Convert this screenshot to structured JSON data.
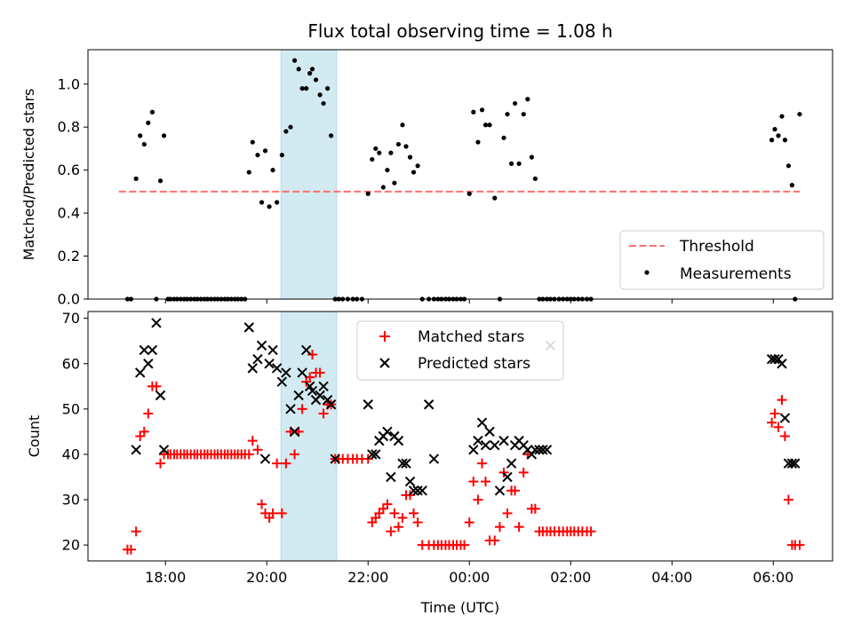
{
  "chart_data": [
    {
      "type": "scatter",
      "title": "Flux total observing time = 1.08 h",
      "ylabel": "Matched/Predicted stars",
      "xlabel": "",
      "ylim": [
        0,
        1.16
      ],
      "yticks": [
        "0.0",
        "0.2",
        "0.4",
        "0.6",
        "0.8",
        "1.0"
      ],
      "legend_position": "lower right",
      "highlight_band": {
        "x_start": 20.28,
        "x_end": 21.38,
        "color": "#add8e6"
      },
      "threshold": {
        "name": "Threshold",
        "y": 0.5,
        "x_start": 17.08,
        "x_end": 30.52,
        "color": "#ff6f6f"
      },
      "series": [
        {
          "name": "Measurements",
          "color": "#000000",
          "x": [
            17.25,
            17.32,
            17.42,
            17.5,
            17.58,
            17.66,
            17.74,
            17.82,
            17.9,
            17.97,
            18.05,
            18.1,
            18.17,
            18.23,
            18.3,
            18.37,
            18.43,
            18.5,
            18.57,
            18.63,
            18.7,
            18.77,
            18.83,
            18.9,
            18.97,
            19.03,
            19.1,
            19.17,
            19.23,
            19.3,
            19.37,
            19.43,
            19.5,
            19.57,
            19.65,
            19.72,
            19.82,
            19.9,
            19.97,
            20.05,
            20.12,
            20.2,
            20.3,
            20.38,
            20.47,
            20.55,
            20.63,
            20.7,
            20.78,
            20.85,
            20.9,
            20.97,
            21.05,
            21.12,
            21.2,
            21.27,
            21.35,
            21.42,
            21.5,
            21.6,
            21.7,
            21.78,
            21.88,
            22.0,
            22.08,
            22.15,
            22.22,
            22.3,
            22.38,
            22.45,
            22.52,
            22.6,
            22.68,
            22.75,
            22.83,
            22.9,
            22.98,
            23.07,
            23.2,
            23.3,
            23.38,
            23.45,
            23.53,
            23.6,
            23.68,
            23.75,
            23.83,
            23.9,
            24.0,
            24.08,
            24.17,
            24.25,
            24.32,
            24.4,
            24.5,
            24.6,
            24.68,
            24.75,
            24.83,
            24.9,
            24.98,
            25.07,
            25.15,
            25.23,
            25.3,
            25.38,
            25.45,
            25.53,
            25.6,
            25.68,
            25.77,
            25.85,
            25.93,
            26.0,
            26.07,
            26.15,
            26.23,
            26.32,
            26.4,
            29.97,
            30.03,
            30.1,
            30.17,
            30.23,
            30.3,
            30.37,
            30.43,
            30.52
          ],
          "y": [
            0,
            0,
            0.56,
            0.76,
            0.72,
            0.82,
            0.87,
            0,
            0.55,
            0.76,
            0,
            0,
            0,
            0,
            0,
            0,
            0,
            0,
            0,
            0,
            0,
            0,
            0,
            0,
            0,
            0,
            0,
            0,
            0,
            0,
            0,
            0,
            0,
            0,
            0.59,
            0.73,
            0.67,
            0.45,
            0.69,
            0.43,
            0.6,
            0.45,
            0.67,
            0.78,
            0.8,
            1.11,
            1.07,
            0.98,
            0.98,
            1.05,
            1.07,
            1.02,
            0.95,
            0.91,
            0.98,
            0.76,
            0,
            0,
            0,
            0,
            0,
            0,
            0,
            0.49,
            0.65,
            0.7,
            0.68,
            0.52,
            0.6,
            0.68,
            0.54,
            0.72,
            0.81,
            0.71,
            0.66,
            0.59,
            0.62,
            0,
            0,
            0,
            0,
            0,
            0,
            0,
            0,
            0,
            0,
            0,
            0.49,
            0.87,
            0.73,
            0.88,
            0.81,
            0.81,
            0.47,
            0,
            0.75,
            0.86,
            0.63,
            0.91,
            0.63,
            0.86,
            0.93,
            0.66,
            0.56,
            0,
            0,
            0,
            0,
            0,
            0,
            0,
            0,
            0,
            0,
            0,
            0,
            0,
            0,
            0.74,
            0.79,
            0.76,
            0.85,
            0.74,
            0.62,
            0.53,
            0,
            0.86
          ]
        }
      ]
    },
    {
      "type": "scatter",
      "title": "",
      "xlabel": "Time (UTC)",
      "ylabel": "Count",
      "xlim": [
        16.47,
        31.17
      ],
      "ylim": [
        16.5,
        71.5
      ],
      "yticks": [
        "20",
        "30",
        "40",
        "50",
        "60",
        "70"
      ],
      "xticks": [
        {
          "value": 18,
          "label": "18:00"
        },
        {
          "value": 20,
          "label": "20:00"
        },
        {
          "value": 22,
          "label": "22:00"
        },
        {
          "value": 24,
          "label": "00:00"
        },
        {
          "value": 26,
          "label": "02:00"
        },
        {
          "value": 28,
          "label": "04:00"
        },
        {
          "value": 30,
          "label": "06:00"
        }
      ],
      "legend_position": "upper center",
      "highlight_band": {
        "x_start": 20.28,
        "x_end": 21.38,
        "color": "#add8e6"
      },
      "series": [
        {
          "name": "Matched stars",
          "marker": "plus",
          "color": "#ff0000",
          "x": [
            17.25,
            17.32,
            17.42,
            17.5,
            17.58,
            17.66,
            17.74,
            17.82,
            17.9,
            17.97,
            18.05,
            18.1,
            18.17,
            18.23,
            18.3,
            18.37,
            18.43,
            18.5,
            18.57,
            18.63,
            18.7,
            18.77,
            18.83,
            18.9,
            18.97,
            19.03,
            19.1,
            19.17,
            19.23,
            19.3,
            19.37,
            19.43,
            19.5,
            19.57,
            19.65,
            19.72,
            19.82,
            19.9,
            19.97,
            20.05,
            20.12,
            20.2,
            20.3,
            20.38,
            20.47,
            20.55,
            20.63,
            20.7,
            20.78,
            20.85,
            20.9,
            20.97,
            21.05,
            21.12,
            21.2,
            21.27,
            21.35,
            21.42,
            21.5,
            21.6,
            21.7,
            21.78,
            21.88,
            22.0,
            22.08,
            22.15,
            22.22,
            22.3,
            22.38,
            22.45,
            22.52,
            22.6,
            22.68,
            22.75,
            22.83,
            22.9,
            22.98,
            23.07,
            23.2,
            23.3,
            23.38,
            23.45,
            23.53,
            23.6,
            23.68,
            23.75,
            23.83,
            23.9,
            24.0,
            24.08,
            24.17,
            24.25,
            24.32,
            24.4,
            24.5,
            24.6,
            24.68,
            24.75,
            24.83,
            24.9,
            24.98,
            25.07,
            25.15,
            25.23,
            25.3,
            25.38,
            25.45,
            25.53,
            25.6,
            25.68,
            25.77,
            25.85,
            25.93,
            26.0,
            26.07,
            26.15,
            26.23,
            26.32,
            26.4,
            29.97,
            30.03,
            30.1,
            30.17,
            30.23,
            30.3,
            30.37,
            30.43,
            30.52
          ],
          "y": [
            19,
            19,
            23,
            44,
            45,
            49,
            55,
            55,
            38,
            40,
            40,
            40,
            40,
            40,
            40,
            40,
            40,
            40,
            40,
            40,
            40,
            40,
            40,
            40,
            40,
            40,
            40,
            40,
            40,
            40,
            40,
            40,
            40,
            40,
            40,
            43,
            41,
            29,
            27,
            26,
            27,
            38,
            27,
            38,
            45,
            40,
            45,
            50,
            56,
            57,
            62,
            58,
            58,
            49,
            51,
            51,
            39,
            39,
            39,
            39,
            39,
            39,
            39,
            39,
            25,
            26,
            27,
            28,
            29,
            23,
            27,
            24,
            26,
            31,
            31,
            27,
            25,
            20,
            20,
            20,
            20,
            20,
            20,
            20,
            20,
            20,
            20,
            20,
            25,
            34,
            30,
            38,
            34,
            21,
            21,
            24,
            36,
            27,
            32,
            32,
            24,
            36,
            40,
            28,
            28,
            23,
            23,
            23,
            23,
            23,
            23,
            23,
            23,
            23,
            23,
            23,
            23,
            23,
            23,
            47,
            49,
            46,
            52,
            44,
            30,
            20,
            20,
            20
          ]
        },
        {
          "name": "Predicted stars",
          "marker": "x",
          "color": "#000000",
          "x": [
            17.42,
            17.5,
            17.58,
            17.66,
            17.74,
            17.82,
            17.9,
            17.97,
            19.65,
            19.72,
            19.82,
            19.9,
            19.97,
            20.05,
            20.12,
            20.2,
            20.3,
            20.38,
            20.47,
            20.55,
            20.63,
            20.7,
            20.78,
            20.85,
            20.9,
            20.97,
            21.05,
            21.12,
            21.2,
            21.27,
            21.35,
            22.0,
            22.08,
            22.15,
            22.22,
            22.3,
            22.38,
            22.45,
            22.52,
            22.6,
            22.68,
            22.75,
            22.83,
            22.9,
            22.98,
            23.07,
            23.2,
            23.3,
            24.08,
            24.17,
            24.25,
            24.32,
            24.4,
            24.5,
            24.6,
            24.68,
            24.75,
            24.83,
            24.9,
            24.98,
            25.07,
            25.15,
            25.23,
            25.3,
            25.38,
            25.45,
            25.53,
            25.6,
            29.97,
            30.03,
            30.1,
            30.17,
            30.23,
            30.3,
            30.37,
            30.43
          ],
          "y": [
            41,
            58,
            63,
            60,
            63,
            69,
            53,
            41,
            68,
            59,
            61,
            64,
            39,
            60,
            63,
            59,
            56,
            58,
            50,
            45,
            53,
            58,
            63,
            55,
            54,
            52,
            53,
            55,
            52,
            51,
            39,
            51,
            40,
            40,
            43,
            44,
            45,
            35,
            44,
            43,
            38,
            38,
            34,
            32,
            32,
            32,
            51,
            39,
            41,
            43,
            47,
            42,
            45,
            42,
            32,
            43,
            35,
            38,
            42,
            43,
            42,
            41,
            40,
            41,
            41,
            41,
            41,
            64,
            61,
            61,
            61,
            60,
            48,
            38,
            38,
            38
          ]
        }
      ]
    }
  ]
}
